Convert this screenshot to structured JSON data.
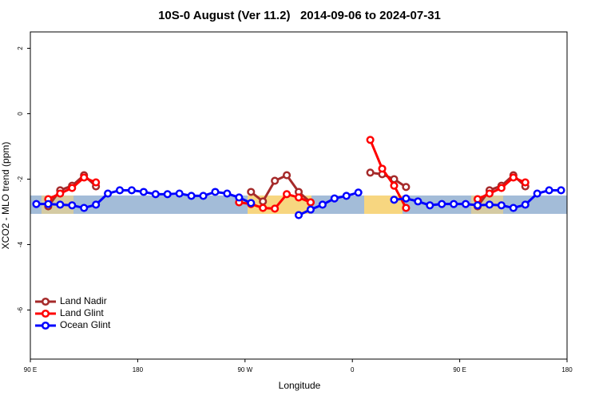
{
  "chart_data": {
    "type": "line",
    "title": "10S-0 August (Ver 11.2)   2014-09-06 to 2024-07-31",
    "x_label": "Longitude",
    "y_label": "XCO2 - MLO trend (ppm)",
    "x": [
      95,
      105,
      115,
      125,
      135,
      145,
      155,
      165,
      175,
      185,
      195,
      205,
      215,
      225,
      235,
      245,
      255,
      265,
      275,
      285,
      295,
      305,
      315,
      325,
      335,
      345,
      355,
      365,
      375,
      385,
      395,
      405,
      415,
      425,
      435,
      445,
      455,
      465,
      475,
      485,
      495,
      505,
      515,
      525,
      535
    ],
    "series": [
      {
        "name": "Land Nadir",
        "color": "#a52a2a",
        "values": [
          null,
          -2.83,
          -2.34,
          -2.2,
          -1.88,
          -2.22,
          null,
          null,
          null,
          null,
          null,
          null,
          null,
          null,
          null,
          null,
          null,
          null,
          -2.39,
          -2.68,
          -2.05,
          -1.88,
          -2.39,
          -2.71,
          null,
          null,
          null,
          null,
          -1.8,
          -1.85,
          -2.0,
          -2.24,
          null,
          null,
          null,
          null,
          null,
          -2.83,
          -2.34,
          -2.2,
          -1.88,
          -2.22,
          null,
          null,
          null
        ]
      },
      {
        "name": "Land Glint",
        "color": "#ff0000",
        "values": [
          null,
          -2.61,
          -2.44,
          -2.27,
          -1.95,
          -2.1,
          null,
          null,
          null,
          null,
          null,
          null,
          null,
          null,
          null,
          null,
          null,
          -2.71,
          -2.76,
          -2.88,
          -2.9,
          -2.46,
          -2.56,
          -2.71,
          null,
          null,
          null,
          null,
          -0.8,
          -1.68,
          -2.2,
          -2.88,
          null,
          null,
          null,
          null,
          null,
          -2.61,
          -2.44,
          -2.27,
          -1.95,
          -2.1,
          null,
          null,
          null
        ]
      },
      {
        "name": "Ocean Glint",
        "color": "#0000ff",
        "values": [
          -2.76,
          -2.76,
          -2.78,
          -2.8,
          -2.88,
          -2.78,
          -2.44,
          -2.34,
          -2.34,
          -2.39,
          -2.46,
          -2.46,
          -2.44,
          -2.51,
          -2.51,
          -2.39,
          -2.44,
          -2.56,
          -2.73,
          null,
          null,
          null,
          -3.1,
          -2.93,
          -2.78,
          -2.59,
          -2.51,
          -2.41,
          null,
          null,
          -2.63,
          -2.59,
          -2.68,
          -2.8,
          -2.76,
          -2.76,
          -2.76,
          -2.8,
          -2.78,
          -2.8,
          -2.88,
          -2.78,
          -2.44,
          -2.34,
          -2.34
        ]
      }
    ],
    "xlim": [
      90,
      540
    ],
    "xticks": [
      {
        "value": 90,
        "label": "90 E"
      },
      180,
      {
        "value": 270,
        "label": "90 W"
      },
      {
        "value": 360,
        "label": "0"
      },
      {
        "value": 450,
        "label": "90 E"
      },
      {
        "value": 540,
        "label": "180"
      }
    ],
    "ylim": [
      -7.5,
      2.5
    ],
    "yticks": [
      2,
      0,
      -2,
      -4,
      -6
    ],
    "legend": "bottom-left"
  }
}
